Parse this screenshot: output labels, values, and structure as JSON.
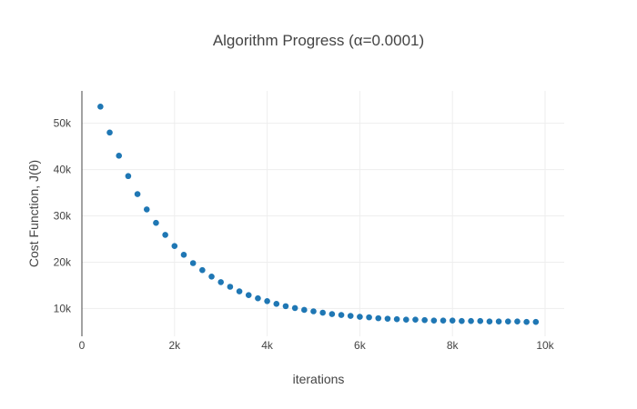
{
  "chart_data": {
    "type": "scatter",
    "title": "Algorithm Progress (α=0.0001)",
    "xlabel": "iterations",
    "ylabel": "Cost Function, J(θ)",
    "xlim": [
      0,
      10400
    ],
    "ylim": [
      4000,
      57000
    ],
    "x_ticks": [
      {
        "value": 0,
        "label": "0"
      },
      {
        "value": 2000,
        "label": "2k"
      },
      {
        "value": 4000,
        "label": "4k"
      },
      {
        "value": 6000,
        "label": "6k"
      },
      {
        "value": 8000,
        "label": "8k"
      },
      {
        "value": 10000,
        "label": "10k"
      }
    ],
    "y_ticks": [
      {
        "value": 10000,
        "label": "10k"
      },
      {
        "value": 20000,
        "label": "20k"
      },
      {
        "value": 30000,
        "label": "30k"
      },
      {
        "value": 40000,
        "label": "40k"
      },
      {
        "value": 50000,
        "label": "50k"
      }
    ],
    "grid": true,
    "marker_color": "#1f77b4",
    "series": [
      {
        "x": [
          400,
          600,
          800,
          1000,
          1200,
          1400,
          1600,
          1800,
          2000,
          2200,
          2400,
          2600,
          2800,
          3000,
          3200,
          3400,
          3600,
          3800,
          4000,
          4200,
          4400,
          4600,
          4800,
          5000,
          5200,
          5400,
          5600,
          5800,
          6000,
          6200,
          6400,
          6600,
          6800,
          7000,
          7200,
          7400,
          7600,
          7800,
          8000,
          8200,
          8400,
          8600,
          8800,
          9000,
          9200,
          9400,
          9600,
          9800
        ],
        "y": [
          53600,
          48000,
          43000,
          38600,
          34700,
          31400,
          28500,
          25900,
          23500,
          21600,
          19800,
          18300,
          16900,
          15700,
          14700,
          13700,
          12900,
          12200,
          11600,
          11000,
          10500,
          10100,
          9700,
          9400,
          9100,
          8800,
          8600,
          8400,
          8200,
          8100,
          7900,
          7800,
          7700,
          7600,
          7600,
          7500,
          7400,
          7400,
          7400,
          7300,
          7300,
          7300,
          7200,
          7200,
          7200,
          7200,
          7100,
          7100
        ]
      }
    ]
  }
}
